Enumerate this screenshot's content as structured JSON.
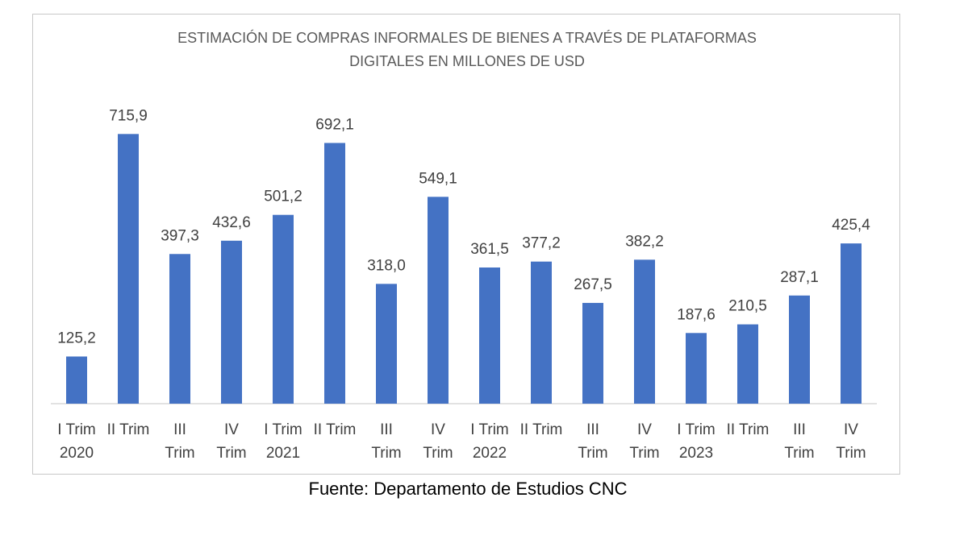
{
  "chart_data": {
    "type": "bar",
    "title": "ESTIMACIÓN DE COMPRAS INFORMALES DE BIENES A TRAVÉS DE PLATAFORMAS DIGITALES EN MILLONES DE USD",
    "title_lines": [
      "ESTIMACIÓN DE COMPRAS INFORMALES DE BIENES A TRAVÉS DE PLATAFORMAS",
      "DIGITALES EN MILLONES DE USD"
    ],
    "categories": [
      [
        "I Trim",
        "2020"
      ],
      [
        "II Trim"
      ],
      [
        "III",
        "Trim"
      ],
      [
        "IV",
        "Trim"
      ],
      [
        "I Trim",
        "2021"
      ],
      [
        "II Trim"
      ],
      [
        "III",
        "Trim"
      ],
      [
        "IV",
        "Trim"
      ],
      [
        "I Trim",
        "2022"
      ],
      [
        "II Trim"
      ],
      [
        "III",
        "Trim"
      ],
      [
        "IV",
        "Trim"
      ],
      [
        "I Trim",
        "2023"
      ],
      [
        "II Trim"
      ],
      [
        "III",
        "Trim"
      ],
      [
        "IV",
        "Trim"
      ]
    ],
    "values": [
      125.2,
      715.9,
      397.3,
      432.6,
      501.2,
      692.1,
      318.0,
      549.1,
      361.5,
      377.2,
      267.5,
      382.2,
      187.6,
      210.5,
      287.1,
      425.4
    ],
    "data_labels": [
      "125,2",
      "715,9",
      "397,3",
      "432,6",
      "501,2",
      "692,1",
      "318,0",
      "549,1",
      "361,5",
      "377,2",
      "267,5",
      "382,2",
      "187,6",
      "210,5",
      "287,1",
      "425,4"
    ],
    "xlabel": "",
    "ylabel": "",
    "ylim": [
      0,
      800
    ],
    "grid": false,
    "legend": "none",
    "bar_color": "#4472c4"
  },
  "source": "Fuente: Departamento de Estudios CNC"
}
